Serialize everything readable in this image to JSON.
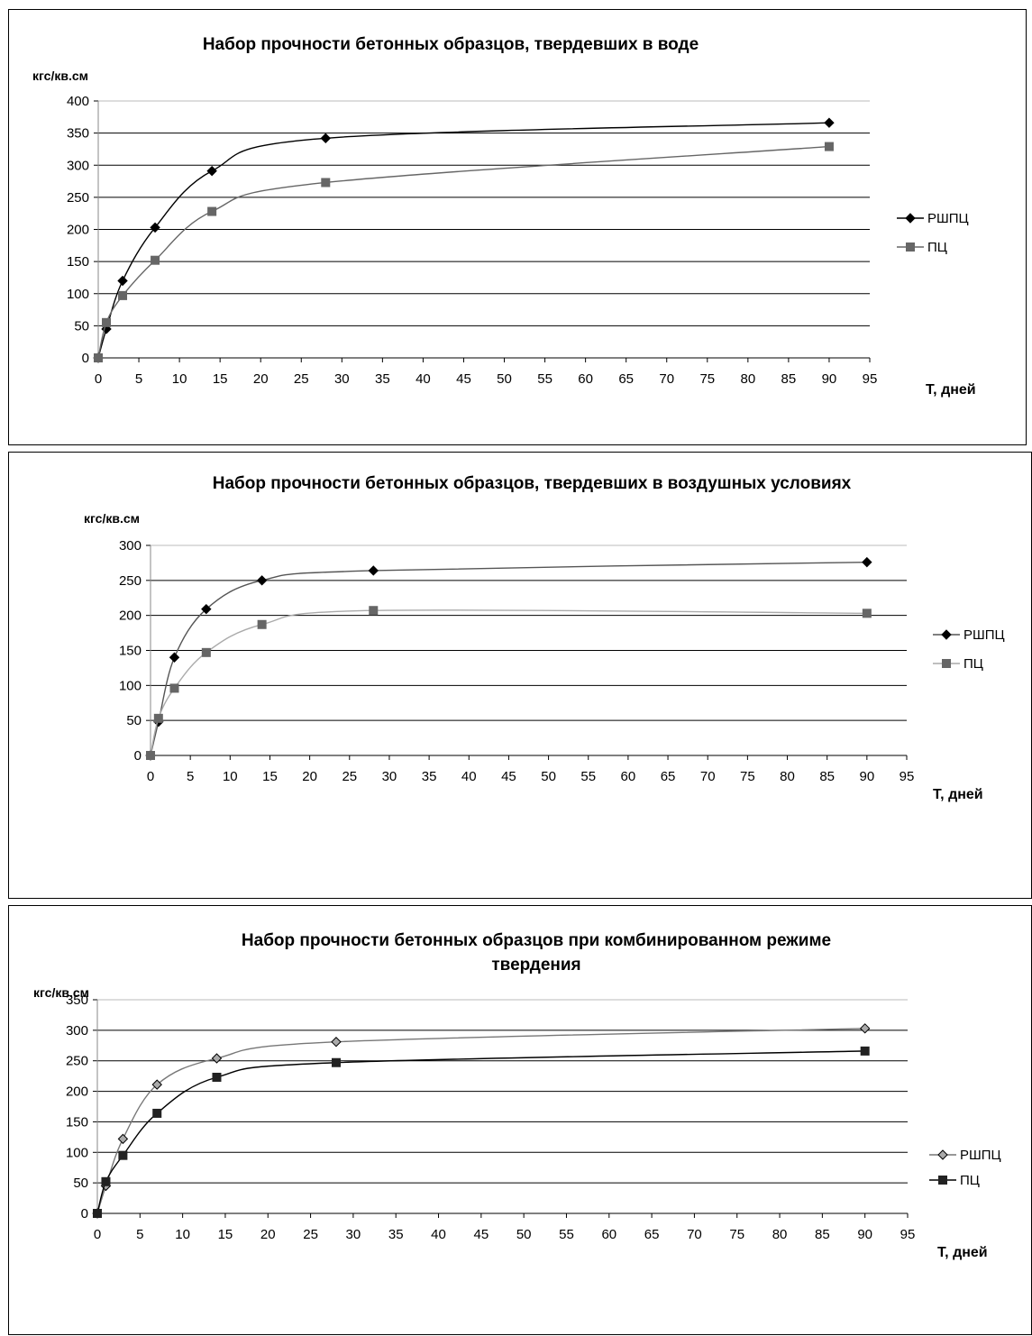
{
  "chart_data": [
    {
      "type": "line",
      "title": "Набор прочности бетонных образцов, твердевших в воде",
      "title_lines": [
        "Набор прочности бетонных образцов, твердевших в воде"
      ],
      "ylabel": "кгс/кв.см",
      "xlabel": "Т, дней",
      "xlim": [
        0,
        95
      ],
      "ylim": [
        0,
        400
      ],
      "x_ticks": [
        "0",
        "5",
        "10",
        "15",
        "20",
        "25",
        "30",
        "35",
        "40",
        "45",
        "50",
        "55",
        "60",
        "65",
        "70",
        "75",
        "80",
        "85",
        "90",
        "95"
      ],
      "y_ticks": [
        "0",
        "50",
        "100",
        "150",
        "200",
        "250",
        "300",
        "350",
        "400"
      ],
      "grid": "horizontal",
      "legend_position": "right",
      "series": [
        {
          "name": "РШПЦ",
          "marker": "diamond",
          "color": "#000000",
          "marker_fill": "#000000",
          "x": [
            0,
            1,
            3,
            7,
            14,
            28,
            90
          ],
          "y": [
            0,
            45,
            120,
            203,
            291,
            342,
            366
          ]
        },
        {
          "name": "ПЦ",
          "marker": "square",
          "color": "#666666",
          "marker_fill": "#666666",
          "x": [
            0,
            1,
            3,
            7,
            14,
            28,
            90
          ],
          "y": [
            0,
            55,
            97,
            152,
            228,
            273,
            329
          ]
        }
      ]
    },
    {
      "type": "line",
      "title": "Набор прочности бетонных образцов, твердевших в воздушных условиях",
      "title_lines": [
        "Набор прочности бетонных образцов, твердевших в воздушных условиях"
      ],
      "ylabel": "кгс/кв.см",
      "xlabel": "Т, дней",
      "xlim": [
        0,
        95
      ],
      "ylim": [
        0,
        300
      ],
      "x_ticks": [
        "0",
        "5",
        "10",
        "15",
        "20",
        "25",
        "30",
        "35",
        "40",
        "45",
        "50",
        "55",
        "60",
        "65",
        "70",
        "75",
        "80",
        "85",
        "90",
        "95"
      ],
      "y_ticks": [
        "0",
        "50",
        "100",
        "150",
        "200",
        "250",
        "300"
      ],
      "grid": "horizontal",
      "legend_position": "right",
      "series": [
        {
          "name": "РШПЦ",
          "marker": "diamond",
          "color": "#555555",
          "marker_fill": "#000000",
          "x": [
            0,
            1,
            3,
            7,
            14,
            28,
            90
          ],
          "y": [
            0,
            48,
            140,
            209,
            250,
            264,
            276
          ]
        },
        {
          "name": "ПЦ",
          "marker": "square",
          "color": "#aaaaaa",
          "marker_fill": "#666666",
          "x": [
            0,
            1,
            3,
            7,
            14,
            28,
            90
          ],
          "y": [
            0,
            53,
            96,
            147,
            187,
            207,
            203
          ]
        }
      ]
    },
    {
      "type": "line",
      "title": "Набор прочности бетонных образцов при комбинированном режиме твердения",
      "title_lines": [
        "Набор прочности бетонных образцов при комбинированном режиме",
        "твердения"
      ],
      "ylabel": "кгс/кв.см",
      "xlabel": "Т, дней",
      "xlim": [
        0,
        95
      ],
      "ylim": [
        0,
        350
      ],
      "x_ticks": [
        "0",
        "5",
        "10",
        "15",
        "20",
        "25",
        "30",
        "35",
        "40",
        "45",
        "50",
        "55",
        "60",
        "65",
        "70",
        "75",
        "80",
        "85",
        "90",
        "95"
      ],
      "y_ticks": [
        "0",
        "50",
        "100",
        "150",
        "200",
        "250",
        "300",
        "350"
      ],
      "grid": "horizontal",
      "legend_position": "right",
      "series": [
        {
          "name": "РШПЦ",
          "marker": "diamond-open",
          "color": "#777777",
          "marker_fill": "#aaaaaa",
          "x": [
            0,
            1,
            3,
            7,
            14,
            28,
            90
          ],
          "y": [
            0,
            45,
            122,
            211,
            254,
            281,
            303
          ]
        },
        {
          "name": "ПЦ",
          "marker": "square",
          "color": "#000000",
          "marker_fill": "#222222",
          "x": [
            0,
            1,
            3,
            7,
            14,
            28,
            90
          ],
          "y": [
            0,
            52,
            95,
            164,
            223,
            247,
            266
          ]
        }
      ]
    }
  ]
}
